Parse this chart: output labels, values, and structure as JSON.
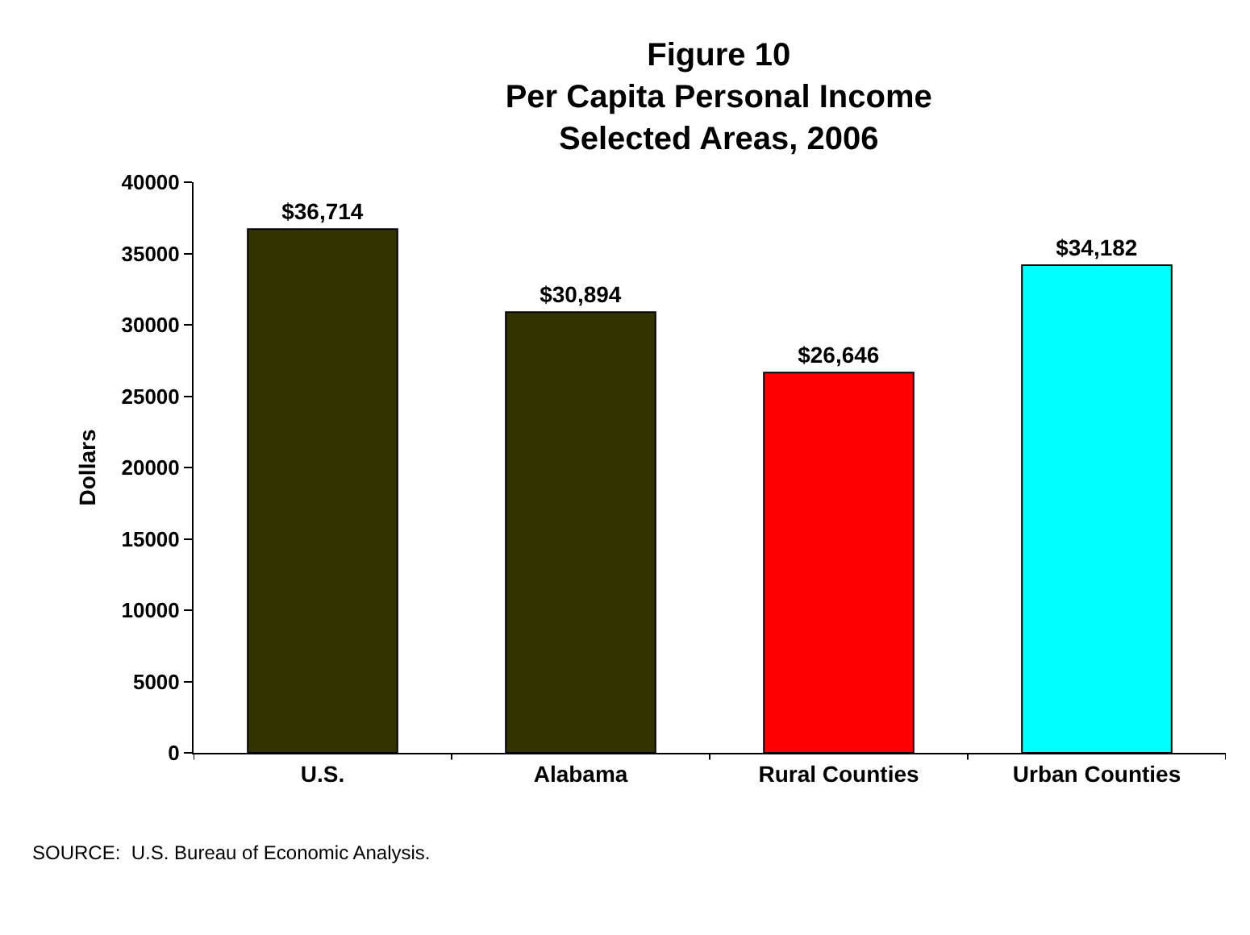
{
  "chart_data": {
    "type": "bar",
    "title": "Figure 10\nPer Capita Personal Income\nSelected Areas, 2006",
    "ylabel": "Dollars",
    "categories": [
      "U.S.",
      "Alabama",
      "Rural Counties",
      "Urban Counties"
    ],
    "values": [
      36714,
      30894,
      26646,
      34182
    ],
    "colors": [
      "#333300",
      "#333300",
      "#ff0000",
      "#00ffff"
    ],
    "value_labels": [
      "$36,714",
      "$30,894",
      "$26,646",
      "$34,182"
    ],
    "ylim": [
      0,
      40000
    ],
    "yticks": [
      0,
      5000,
      10000,
      15000,
      20000,
      25000,
      30000,
      35000,
      40000
    ],
    "annotations": [
      "SOURCE:  U.S. Bureau of Economic Analysis."
    ]
  }
}
